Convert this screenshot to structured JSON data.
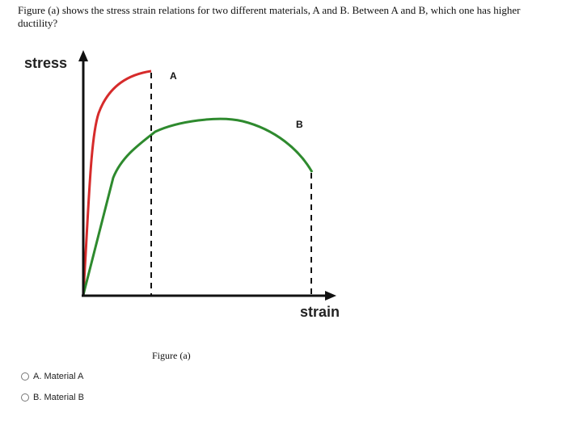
{
  "question": "Figure (a) shows the stress strain relations for two different materials, A and B. Between A and B, which one has higher ductility?",
  "figure": {
    "y_label": "stress",
    "x_label": "strain",
    "curve_a_label": "A",
    "curve_b_label": "B",
    "caption": "Figure (a)"
  },
  "options": [
    "A. Material A",
    "B. Material B"
  ]
}
